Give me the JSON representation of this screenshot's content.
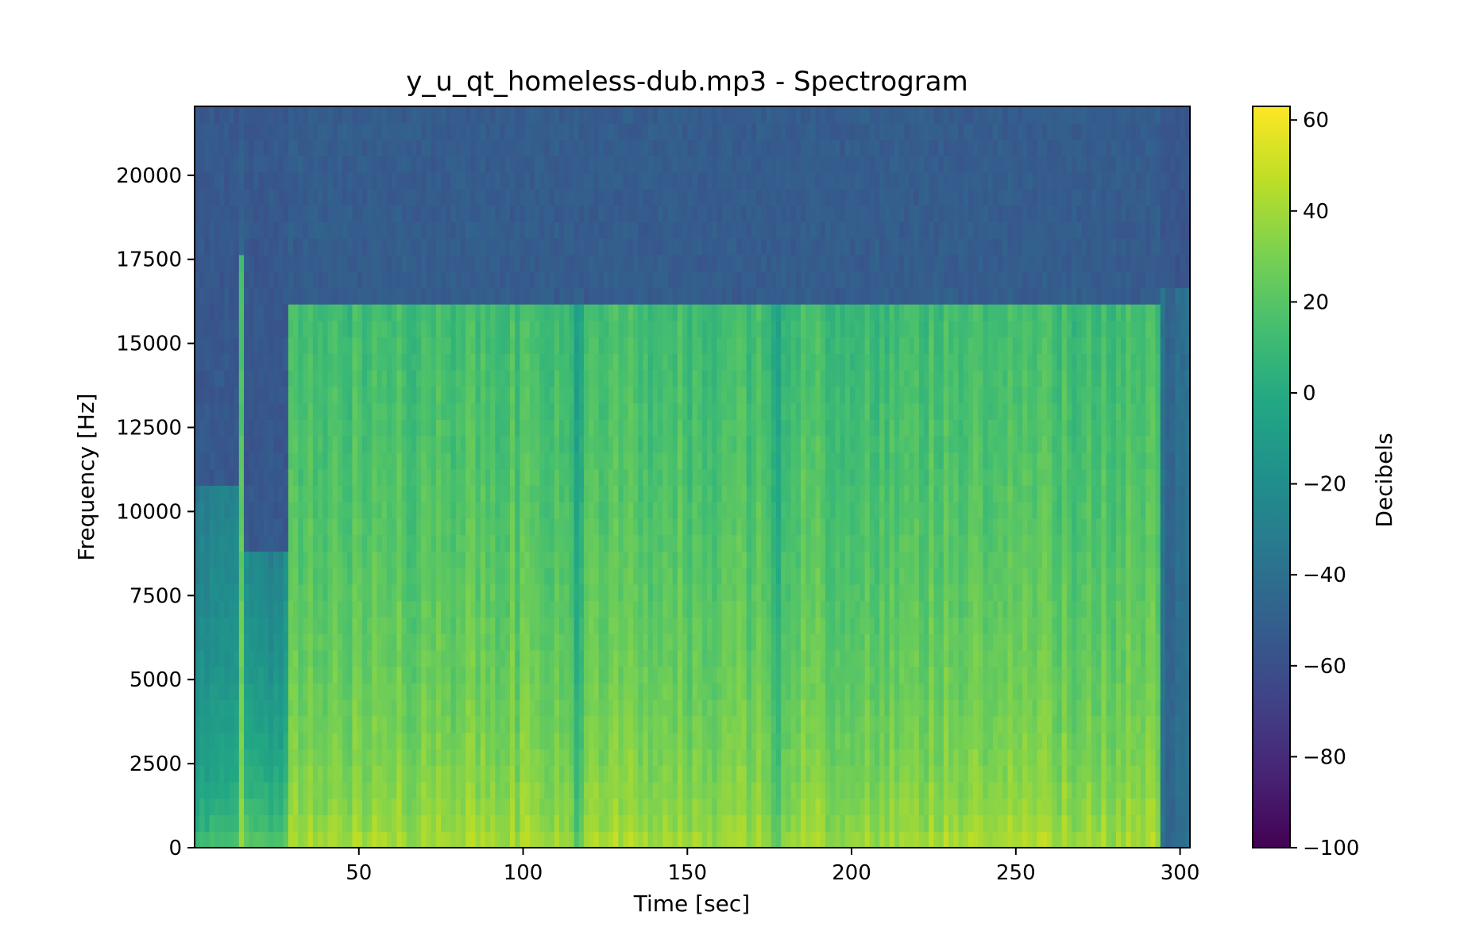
{
  "chart_data": {
    "type": "heatmap",
    "title": "y_u_qt_homeless-dub.mp3 - Spectrogram",
    "xlabel": "Time [sec]",
    "ylabel": "Frequency [Hz]",
    "colorbar_label": "Decibels",
    "colormap": "viridis",
    "xlim": [
      0,
      303
    ],
    "ylim": [
      0,
      22050
    ],
    "clim": [
      -100,
      63
    ],
    "x_ticks": [
      50,
      100,
      150,
      200,
      250,
      300
    ],
    "y_ticks": [
      0,
      2500,
      5000,
      7500,
      10000,
      12500,
      15000,
      17500,
      20000
    ],
    "colorbar_ticks": [
      60,
      40,
      20,
      0,
      -20,
      -40,
      -60,
      -80,
      -100
    ],
    "colorbar_tick_labels": [
      "60",
      "40",
      "20",
      "0",
      "−20",
      "−40",
      "−60",
      "−80",
      "−100"
    ],
    "sections": [
      {
        "t_start": 0,
        "t_end": 14,
        "cutoff_hz": 11000,
        "low_db": 22,
        "mid_db": -30,
        "high_db": -55
      },
      {
        "t_start": 14,
        "t_end": 15,
        "cutoff_hz": 17500,
        "low_db": 40,
        "mid_db": 10,
        "high_db": -50
      },
      {
        "t_start": 15,
        "t_end": 28,
        "cutoff_hz": 9000,
        "low_db": 30,
        "mid_db": -25,
        "high_db": -55
      },
      {
        "t_start": 28,
        "t_end": 294,
        "cutoff_hz": 16000,
        "low_db": 45,
        "mid_db": 12,
        "high_db": -52
      },
      {
        "t_start": 294,
        "t_end": 303,
        "cutoff_hz": 16500,
        "low_db": -42,
        "mid_db": -42,
        "high_db": -56
      }
    ],
    "dips_sec": [
      116,
      176
    ]
  }
}
